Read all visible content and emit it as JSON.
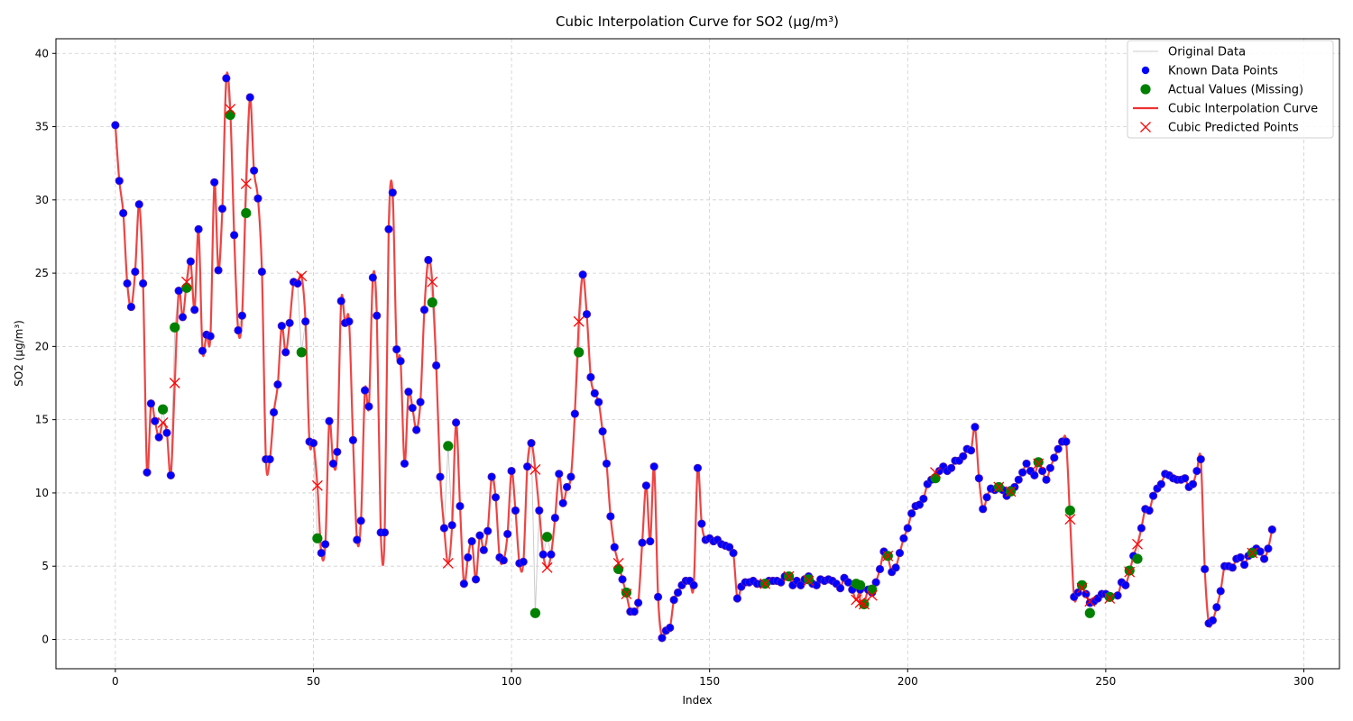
{
  "chart_data": {
    "type": "line",
    "title": "Cubic Interpolation Curve for SO2 (µg/m³)",
    "xlabel": "Index",
    "ylabel": "SO2 (µg/m³)",
    "xlim": [
      -15,
      309
    ],
    "ylim": [
      -2,
      41
    ],
    "xticks": [
      0,
      50,
      100,
      150,
      200,
      250,
      300
    ],
    "yticks": [
      0,
      5,
      10,
      15,
      20,
      25,
      30,
      35,
      40
    ],
    "grid": true,
    "legend_position": "top-right",
    "legend": [
      {
        "label": "Original Data",
        "style": "line",
        "color": "#cccccc"
      },
      {
        "label": "Known Data Points",
        "style": "dot",
        "color": "#0000ff"
      },
      {
        "label": "Actual Values (Missing)",
        "style": "big-dot",
        "color": "#008000"
      },
      {
        "label": "Cubic Interpolation Curve",
        "style": "line",
        "color": "#ee3333"
      },
      {
        "label": "Cubic Predicted Points",
        "style": "cross",
        "color": "#ff0000"
      }
    ],
    "colors": {
      "original": "#cccccc",
      "known": "#0000ff",
      "known_edge": "#5a1fa8",
      "actual": "#008000",
      "curve": "#ee3333",
      "predicted": "#ff0000"
    },
    "known": [
      [
        0,
        35.1
      ],
      [
        1,
        31.3
      ],
      [
        2,
        29.1
      ],
      [
        3,
        24.3
      ],
      [
        4,
        22.7
      ],
      [
        5,
        25.1
      ],
      [
        6,
        29.7
      ],
      [
        7,
        24.3
      ],
      [
        8,
        11.4
      ],
      [
        9,
        16.1
      ],
      [
        10,
        14.9
      ],
      [
        11,
        13.8
      ],
      [
        13,
        14.1
      ],
      [
        14,
        11.2
      ],
      [
        16,
        23.8
      ],
      [
        17,
        22.0
      ],
      [
        19,
        25.8
      ],
      [
        20,
        22.5
      ],
      [
        21,
        28.0
      ],
      [
        22,
        19.7
      ],
      [
        23,
        20.8
      ],
      [
        24,
        20.7
      ],
      [
        25,
        31.2
      ],
      [
        26,
        25.2
      ],
      [
        27,
        29.4
      ],
      [
        28,
        38.3
      ],
      [
        30,
        27.6
      ],
      [
        31,
        21.1
      ],
      [
        32,
        22.1
      ],
      [
        34,
        37.0
      ],
      [
        35,
        32.0
      ],
      [
        36,
        30.1
      ],
      [
        37,
        25.1
      ],
      [
        38,
        12.3
      ],
      [
        39,
        12.3
      ],
      [
        40,
        15.5
      ],
      [
        41,
        17.4
      ],
      [
        42,
        21.4
      ],
      [
        43,
        19.6
      ],
      [
        44,
        21.6
      ],
      [
        45,
        24.4
      ],
      [
        46,
        24.3
      ],
      [
        48,
        21.7
      ],
      [
        49,
        13.5
      ],
      [
        50,
        13.4
      ],
      [
        52,
        5.9
      ],
      [
        53,
        6.5
      ],
      [
        54,
        14.9
      ],
      [
        55,
        12.0
      ],
      [
        56,
        12.8
      ],
      [
        57,
        23.1
      ],
      [
        58,
        21.6
      ],
      [
        59,
        21.7
      ],
      [
        60,
        13.6
      ],
      [
        61,
        6.8
      ],
      [
        62,
        8.1
      ],
      [
        63,
        17.0
      ],
      [
        64,
        15.9
      ],
      [
        65,
        24.7
      ],
      [
        66,
        22.1
      ],
      [
        67,
        7.3
      ],
      [
        68,
        7.3
      ],
      [
        69,
        28.0
      ],
      [
        70,
        30.5
      ],
      [
        71,
        19.8
      ],
      [
        72,
        19.0
      ],
      [
        73,
        12.0
      ],
      [
        74,
        16.9
      ],
      [
        75,
        15.8
      ],
      [
        76,
        14.3
      ],
      [
        77,
        16.2
      ],
      [
        78,
        22.5
      ],
      [
        79,
        25.9
      ],
      [
        81,
        18.7
      ],
      [
        82,
        11.1
      ],
      [
        83,
        7.6
      ],
      [
        85,
        7.8
      ],
      [
        86,
        14.8
      ],
      [
        87,
        9.1
      ],
      [
        88,
        3.8
      ],
      [
        89,
        5.6
      ],
      [
        90,
        6.7
      ],
      [
        91,
        4.1
      ],
      [
        92,
        7.1
      ],
      [
        93,
        6.1
      ],
      [
        94,
        7.4
      ],
      [
        95,
        11.1
      ],
      [
        96,
        9.7
      ],
      [
        97,
        5.6
      ],
      [
        98,
        5.4
      ],
      [
        99,
        7.2
      ],
      [
        100,
        11.5
      ],
      [
        101,
        8.8
      ],
      [
        102,
        5.2
      ],
      [
        103,
        5.3
      ],
      [
        104,
        11.8
      ],
      [
        105,
        13.4
      ],
      [
        107,
        8.8
      ],
      [
        108,
        5.8
      ],
      [
        110,
        5.8
      ],
      [
        111,
        8.3
      ],
      [
        112,
        11.3
      ],
      [
        113,
        9.3
      ],
      [
        114,
        10.4
      ],
      [
        115,
        11.1
      ],
      [
        116,
        15.4
      ],
      [
        118,
        24.9
      ],
      [
        119,
        22.2
      ],
      [
        120,
        17.9
      ],
      [
        121,
        16.8
      ],
      [
        122,
        16.2
      ],
      [
        123,
        14.2
      ],
      [
        124,
        12.0
      ],
      [
        125,
        8.4
      ],
      [
        126,
        6.3
      ],
      [
        128,
        4.1
      ],
      [
        130,
        1.9
      ],
      [
        131,
        1.9
      ],
      [
        132,
        2.5
      ],
      [
        133,
        6.6
      ],
      [
        134,
        10.5
      ],
      [
        135,
        6.7
      ],
      [
        136,
        11.8
      ],
      [
        137,
        2.9
      ],
      [
        138,
        0.1
      ],
      [
        139,
        0.6
      ],
      [
        140,
        0.8
      ],
      [
        141,
        2.7
      ],
      [
        142,
        3.2
      ],
      [
        143,
        3.7
      ],
      [
        144,
        4.0
      ],
      [
        145,
        4.0
      ],
      [
        146,
        3.7
      ],
      [
        147,
        11.7
      ],
      [
        148,
        7.9
      ],
      [
        149,
        6.8
      ],
      [
        150,
        6.9
      ],
      [
        151,
        6.7
      ],
      [
        152,
        6.8
      ],
      [
        153,
        6.5
      ],
      [
        154,
        6.4
      ],
      [
        155,
        6.3
      ],
      [
        156,
        5.9
      ],
      [
        157,
        2.8
      ],
      [
        158,
        3.6
      ],
      [
        159,
        3.9
      ],
      [
        160,
        3.9
      ],
      [
        161,
        4.0
      ],
      [
        162,
        3.8
      ],
      [
        163,
        3.8
      ],
      [
        164,
        3.8
      ],
      [
        165,
        4.0
      ],
      [
        166,
        4.0
      ],
      [
        167,
        4.0
      ],
      [
        168,
        3.9
      ],
      [
        169,
        4.3
      ],
      [
        171,
        3.7
      ],
      [
        172,
        4.0
      ],
      [
        173,
        3.7
      ],
      [
        174,
        4.1
      ],
      [
        175,
        4.3
      ],
      [
        176,
        3.8
      ],
      [
        177,
        3.7
      ],
      [
        178,
        4.1
      ],
      [
        179,
        4.0
      ],
      [
        180,
        4.1
      ],
      [
        181,
        4.0
      ],
      [
        182,
        3.8
      ],
      [
        183,
        3.5
      ],
      [
        184,
        4.2
      ],
      [
        185,
        3.9
      ],
      [
        186,
        3.4
      ],
      [
        188,
        3.4
      ],
      [
        190,
        3.4
      ],
      [
        191,
        3.2
      ],
      [
        192,
        3.9
      ],
      [
        193,
        4.8
      ],
      [
        194,
        6.0
      ],
      [
        195,
        5.7
      ],
      [
        196,
        4.6
      ],
      [
        197,
        4.9
      ],
      [
        198,
        5.9
      ],
      [
        199,
        6.9
      ],
      [
        200,
        7.6
      ],
      [
        201,
        8.6
      ],
      [
        202,
        9.1
      ],
      [
        203,
        9.2
      ],
      [
        204,
        9.6
      ],
      [
        205,
        10.6
      ],
      [
        206,
        10.9
      ],
      [
        208,
        11.5
      ],
      [
        209,
        11.8
      ],
      [
        210,
        11.5
      ],
      [
        211,
        11.7
      ],
      [
        212,
        12.2
      ],
      [
        213,
        12.2
      ],
      [
        214,
        12.5
      ],
      [
        215,
        13.0
      ],
      [
        216,
        12.9
      ],
      [
        217,
        14.5
      ],
      [
        218,
        11.0
      ],
      [
        219,
        8.9
      ],
      [
        220,
        9.7
      ],
      [
        221,
        10.3
      ],
      [
        222,
        10.2
      ],
      [
        224,
        10.2
      ],
      [
        225,
        9.8
      ],
      [
        226,
        10.2
      ],
      [
        227,
        10.4
      ],
      [
        228,
        10.9
      ],
      [
        229,
        11.4
      ],
      [
        230,
        12.0
      ],
      [
        231,
        11.5
      ],
      [
        232,
        11.2
      ],
      [
        234,
        11.5
      ],
      [
        235,
        10.9
      ],
      [
        236,
        11.7
      ],
      [
        237,
        12.4
      ],
      [
        238,
        13.0
      ],
      [
        239,
        13.5
      ],
      [
        240,
        13.5
      ],
      [
        242,
        2.9
      ],
      [
        243,
        3.2
      ],
      [
        245,
        3.1
      ],
      [
        246,
        2.5
      ],
      [
        247,
        2.6
      ],
      [
        248,
        2.8
      ],
      [
        249,
        3.1
      ],
      [
        250,
        3.1
      ],
      [
        251,
        2.9
      ],
      [
        253,
        3.0
      ],
      [
        254,
        3.9
      ],
      [
        255,
        3.7
      ],
      [
        257,
        5.7
      ],
      [
        259,
        7.6
      ],
      [
        260,
        8.9
      ],
      [
        261,
        8.8
      ],
      [
        262,
        9.8
      ],
      [
        263,
        10.3
      ],
      [
        264,
        10.6
      ],
      [
        265,
        11.3
      ],
      [
        266,
        11.2
      ],
      [
        267,
        11.0
      ],
      [
        268,
        10.9
      ],
      [
        269,
        10.9
      ],
      [
        270,
        11.0
      ],
      [
        271,
        10.4
      ],
      [
        272,
        10.6
      ],
      [
        273,
        11.5
      ],
      [
        274,
        12.3
      ],
      [
        275,
        4.8
      ],
      [
        276,
        1.1
      ],
      [
        277,
        1.3
      ],
      [
        278,
        2.2
      ],
      [
        279,
        3.3
      ],
      [
        280,
        5.0
      ],
      [
        281,
        5.0
      ],
      [
        282,
        4.9
      ],
      [
        283,
        5.5
      ],
      [
        284,
        5.6
      ],
      [
        285,
        5.1
      ],
      [
        286,
        5.7
      ],
      [
        287,
        6.0
      ],
      [
        288,
        6.2
      ],
      [
        289,
        6.0
      ],
      [
        290,
        5.5
      ],
      [
        291,
        6.2
      ],
      [
        292,
        7.5
      ]
    ],
    "actual": [
      [
        12,
        15.7
      ],
      [
        15,
        21.3
      ],
      [
        18,
        24.0
      ],
      [
        29,
        35.8
      ],
      [
        33,
        29.1
      ],
      [
        47,
        19.6
      ],
      [
        51,
        6.9
      ],
      [
        80,
        23.0
      ],
      [
        84,
        13.2
      ],
      [
        106,
        1.8
      ],
      [
        109,
        7.0
      ],
      [
        117,
        19.6
      ],
      [
        127,
        4.8
      ],
      [
        129,
        3.2
      ],
      [
        164,
        3.8
      ],
      [
        170,
        4.3
      ],
      [
        175,
        4.1
      ],
      [
        187,
        3.8
      ],
      [
        188,
        3.7
      ],
      [
        189,
        2.4
      ],
      [
        191,
        3.4
      ],
      [
        195,
        5.7
      ],
      [
        207,
        11.0
      ],
      [
        223,
        10.4
      ],
      [
        226,
        10.1
      ],
      [
        233,
        12.1
      ],
      [
        241,
        8.8
      ],
      [
        244,
        3.7
      ],
      [
        246,
        1.8
      ],
      [
        251,
        2.9
      ],
      [
        256,
        4.7
      ],
      [
        258,
        5.5
      ],
      [
        287,
        5.9
      ]
    ],
    "predicted": [
      [
        12,
        14.8
      ],
      [
        15,
        17.5
      ],
      [
        18,
        24.4
      ],
      [
        29,
        36.2
      ],
      [
        33,
        31.1
      ],
      [
        47,
        24.8
      ],
      [
        51,
        10.5
      ],
      [
        80,
        24.4
      ],
      [
        84,
        5.2
      ],
      [
        106,
        11.6
      ],
      [
        109,
        4.9
      ],
      [
        117,
        21.7
      ],
      [
        127,
        5.2
      ],
      [
        129,
        3.1
      ],
      [
        164,
        3.8
      ],
      [
        170,
        4.3
      ],
      [
        175,
        4.0
      ],
      [
        187,
        2.7
      ],
      [
        188,
        2.5
      ],
      [
        189,
        2.4
      ],
      [
        191,
        3.0
      ],
      [
        195,
        5.7
      ],
      [
        207,
        11.4
      ],
      [
        223,
        10.4
      ],
      [
        226,
        10.1
      ],
      [
        233,
        12.0
      ],
      [
        241,
        8.2
      ],
      [
        244,
        3.5
      ],
      [
        246,
        2.6
      ],
      [
        251,
        2.8
      ],
      [
        256,
        4.6
      ],
      [
        258,
        6.5
      ],
      [
        287,
        5.9
      ]
    ]
  }
}
